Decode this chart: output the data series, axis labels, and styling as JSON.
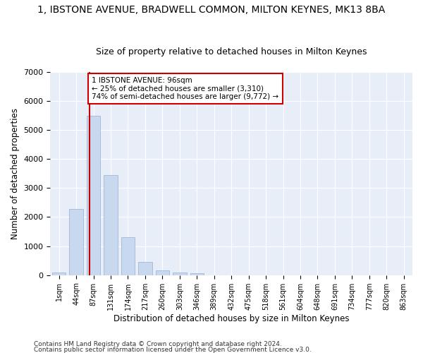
{
  "title": "1, IBSTONE AVENUE, BRADWELL COMMON, MILTON KEYNES, MK13 8BA",
  "subtitle": "Size of property relative to detached houses in Milton Keynes",
  "xlabel": "Distribution of detached houses by size in Milton Keynes",
  "ylabel": "Number of detached properties",
  "bar_color": "#c8d8ee",
  "bar_edge_color": "#a0b8d8",
  "background_color": "#e8eef8",
  "grid_color": "#ffffff",
  "footer_line1": "Contains HM Land Registry data © Crown copyright and database right 2024.",
  "footer_line2": "Contains public sector information licensed under the Open Government Licence v3.0.",
  "annotation_line1": "1 IBSTONE AVENUE: 96sqm",
  "annotation_line2": "← 25% of detached houses are smaller (3,310)",
  "annotation_line3": "74% of semi-detached houses are larger (9,772) →",
  "annotation_box_color": "#ffffff",
  "annotation_box_edge": "#cc0000",
  "vline_color": "#cc0000",
  "categories": [
    "1sqm",
    "44sqm",
    "87sqm",
    "131sqm",
    "174sqm",
    "217sqm",
    "260sqm",
    "303sqm",
    "346sqm",
    "389sqm",
    "432sqm",
    "475sqm",
    "518sqm",
    "561sqm",
    "604sqm",
    "648sqm",
    "691sqm",
    "734sqm",
    "777sqm",
    "820sqm",
    "863sqm"
  ],
  "values": [
    80,
    2280,
    5480,
    3440,
    1310,
    460,
    160,
    100,
    60,
    0,
    0,
    0,
    0,
    0,
    0,
    0,
    0,
    0,
    0,
    0,
    0
  ],
  "ylim": [
    0,
    7000
  ],
  "yticks": [
    0,
    1000,
    2000,
    3000,
    4000,
    5000,
    6000,
    7000
  ]
}
